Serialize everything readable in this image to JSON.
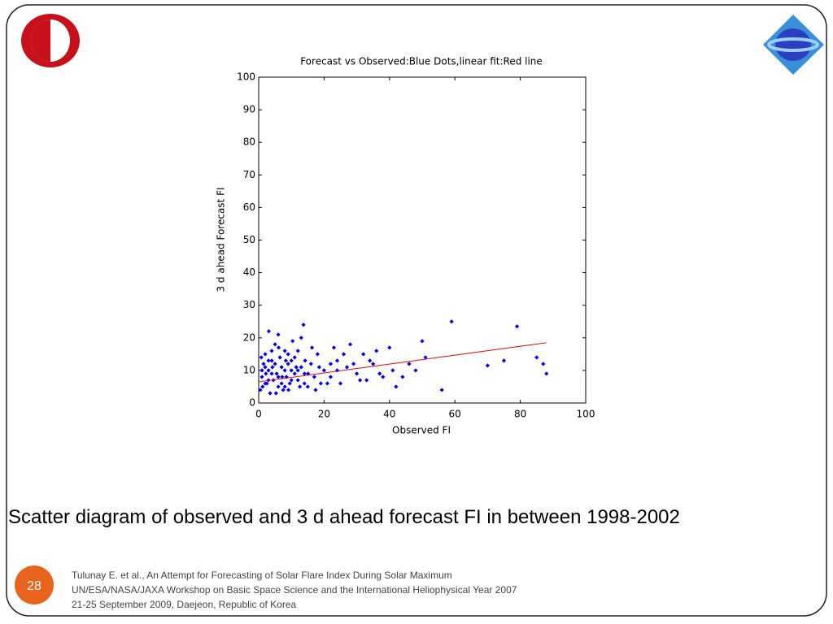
{
  "chart_data": {
    "type": "scatter",
    "title": "Forecast vs Observed:Blue Dots,linear fit:Red line",
    "xlabel": "Observed FI",
    "ylabel": "3 d ahead Forecast FI",
    "xlim": [
      0,
      100
    ],
    "ylim": [
      0,
      100
    ],
    "xticks": [
      0,
      20,
      40,
      60,
      80,
      100
    ],
    "yticks": [
      0,
      10,
      20,
      30,
      40,
      50,
      60,
      70,
      80,
      90,
      100
    ],
    "series": [
      {
        "type": "scatter",
        "color": "#0000ee",
        "x": [
          0.5,
          1,
          1.5,
          2,
          2.5,
          3,
          3.5,
          4,
          4.5,
          5,
          5.5,
          6,
          6.5,
          7,
          7.5,
          8,
          8.5,
          9,
          9.5,
          10,
          11,
          12,
          13,
          14,
          15,
          16,
          17,
          18,
          19,
          20,
          0.8,
          1.2,
          2.2,
          3.1,
          4.2,
          5.3,
          6.1,
          7.2,
          8.3,
          9.1,
          10.4,
          11.5,
          12.6,
          13.7,
          14.2,
          15.1,
          16.3,
          17.4,
          18.5,
          2,
          3,
          4,
          5,
          6,
          7,
          8,
          9,
          10,
          11,
          12,
          13,
          14,
          1,
          2,
          3,
          4,
          6,
          8,
          10,
          12,
          22,
          24,
          25,
          27,
          28,
          30,
          32,
          33,
          35,
          36,
          38,
          40,
          41,
          42,
          44,
          46,
          48,
          50,
          51,
          56,
          59,
          70,
          75,
          79,
          85,
          87,
          88,
          24,
          26,
          29,
          31,
          34,
          37,
          22,
          23,
          21
        ],
        "values": [
          4,
          8,
          12,
          15,
          6,
          10,
          3,
          13,
          7,
          18,
          9,
          5,
          14,
          11,
          4,
          16,
          8,
          12,
          6,
          10,
          14,
          7,
          20,
          9,
          5,
          12,
          8,
          15,
          6,
          10,
          14,
          5,
          9,
          22,
          11,
          3,
          17,
          8,
          13,
          4,
          19,
          11,
          5,
          24,
          13,
          9,
          17,
          4,
          11,
          11,
          7,
          16,
          12,
          21,
          6,
          10,
          15,
          7,
          9,
          16,
          11,
          6,
          10,
          6,
          13,
          9,
          8,
          5,
          13,
          10,
          8,
          13,
          6,
          11,
          18,
          9,
          15,
          7,
          12,
          16,
          8,
          17,
          10,
          5,
          8,
          12,
          10,
          19,
          14,
          4,
          25,
          11.5,
          13,
          23.5,
          14,
          12,
          9,
          10,
          15,
          12,
          7,
          13,
          9,
          12,
          17,
          6
        ]
      },
      {
        "type": "line",
        "color": "#ee0000",
        "x": [
          0,
          88
        ],
        "values": [
          6.5,
          18.5
        ]
      }
    ]
  },
  "slide": {
    "caption": "Scatter diagram of observed and 3 d ahead forecast FI in between 1998-2002",
    "number": "28",
    "footer": [
      "Tulunay E. et al., An Attempt for Forecasting of Solar Flare Index During Solar Maximum",
      "UN/ESA/NASA/JAXA Workshop on Basic Space Science and the International Heliophysical Year 2007",
      "21-25 September 2009, Daejeon, Republic of Korea"
    ]
  }
}
